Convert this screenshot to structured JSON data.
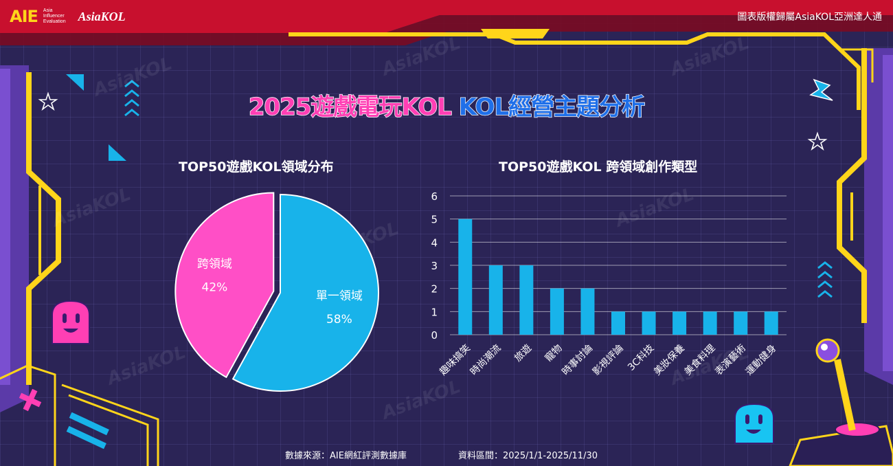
{
  "header": {
    "brand_mark": "AIE",
    "brand_sub": [
      "Asia",
      "Influencer",
      "Evaluation"
    ],
    "brand_kol": "AsiaKOL",
    "copyright": "圖表版權歸屬AsiaKOL亞洲達人通"
  },
  "title": {
    "part1": "2025遊戲電玩KOL",
    "part2": "KOL經營主題分析"
  },
  "watermark": "AsiaKOL",
  "colors": {
    "pink": "#ff4fc6",
    "blue": "#18b3ea",
    "yellow": "#ffd51a",
    "background": "#2b2456"
  },
  "chart_data": [
    {
      "type": "pie",
      "title": "TOP50遊戲KOL領域分布",
      "slices": [
        {
          "label": "單一領域",
          "value": 58,
          "display": "58%",
          "color": "#18b3ea"
        },
        {
          "label": "跨領域",
          "value": 42,
          "display": "42%",
          "color": "#ff4fc6"
        }
      ]
    },
    {
      "type": "bar",
      "title": "TOP50遊戲KOL 跨領域創作類型",
      "categories": [
        "趣味搞笑",
        "時尚潮流",
        "旅遊",
        "寵物",
        "時事討論",
        "影視評論",
        "3C科技",
        "美妝保養",
        "美食料理",
        "表演藝術",
        "運動健身"
      ],
      "values": [
        5,
        3,
        3,
        2,
        2,
        1,
        1,
        1,
        1,
        1,
        1
      ],
      "ylim": [
        0,
        6
      ],
      "yticks": [
        0,
        1,
        2,
        3,
        4,
        5,
        6
      ],
      "grid": true,
      "bar_color": "#18b3ea"
    }
  ],
  "footer": {
    "source": "數據來源：AIE網紅評測數據庫",
    "period": "資料區間：2025/1/1-2025/11/30"
  }
}
